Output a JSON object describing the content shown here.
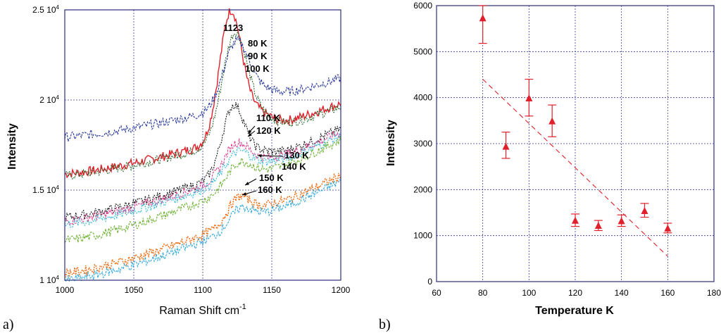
{
  "chart_data": [
    {
      "panel_label": "a)",
      "type": "line",
      "xlabel": "Raman Shift cm",
      "xlabel_sup": "-1",
      "ylabel": "Intensity",
      "xlim": [
        1000,
        1200
      ],
      "ylim": [
        10000,
        25000
      ],
      "x_ticks": [
        "1000",
        "1050",
        "1100",
        "1150",
        "1200"
      ],
      "y_ticks": [
        {
          "value": 10000,
          "base": "1 10",
          "exp": "4"
        },
        {
          "value": 15000,
          "base": "1.5 10",
          "exp": "4"
        },
        {
          "value": 20000,
          "base": "2 10",
          "exp": "4"
        },
        {
          "value": 25000,
          "base": "2.5 10",
          "exp": "4"
        }
      ],
      "peak_label": "1123",
      "series": [
        {
          "name": "80 K",
          "color": "#e0202a",
          "base_start": 15900,
          "base_end": 19800,
          "peak": 6900,
          "center": 1120,
          "width": 8
        },
        {
          "name": "90 K",
          "color": "#2f6a2f",
          "base_start": 15800,
          "base_end": 19600,
          "peak": 5800,
          "center": 1123,
          "width": 9
        },
        {
          "name": "100 K",
          "color": "#2a3a9c",
          "base_start": 17950,
          "base_end": 21200,
          "peak": 3500,
          "center": 1124,
          "width": 9
        },
        {
          "name": "110 K",
          "color": "#111111",
          "base_start": 13500,
          "base_end": 18400,
          "peak": 3600,
          "center": 1122,
          "width": 8
        },
        {
          "name": "120 K",
          "color": "#e04090",
          "base_start": 13300,
          "base_end": 18200,
          "peak": 1700,
          "center": 1124,
          "width": 9
        },
        {
          "name": "130 K",
          "color": "#30b8d8",
          "base_start": 13100,
          "base_end": 18000,
          "peak": 1400,
          "center": 1125,
          "width": 9
        },
        {
          "name": "140 K",
          "color": "#6ab02e",
          "base_start": 12200,
          "base_end": 17800,
          "peak": 1300,
          "center": 1126,
          "width": 9
        },
        {
          "name": "150 K",
          "color": "#f26a10",
          "base_start": 10400,
          "base_end": 15800,
          "peak": 1300,
          "center": 1126,
          "width": 8
        },
        {
          "name": "160 K",
          "color": "#30a8dc",
          "base_start": 10000,
          "base_end": 15500,
          "peak": 1000,
          "center": 1127,
          "width": 8
        }
      ]
    },
    {
      "panel_label": "b)",
      "type": "scatter",
      "xlabel": "Temperature K",
      "ylabel": "Intensity",
      "xlim": [
        60,
        180
      ],
      "ylim": [
        0,
        6000
      ],
      "x_ticks": [
        "60",
        "80",
        "100",
        "120",
        "140",
        "160",
        "180"
      ],
      "y_ticks": [
        "0",
        "1000",
        "2000",
        "3000",
        "4000",
        "5000",
        "6000"
      ],
      "color": "#e0202a",
      "points": [
        {
          "x": 80,
          "y": 5720,
          "err_low": 5180,
          "err_high": 6000
        },
        {
          "x": 90,
          "y": 2930,
          "err_low": 2680,
          "err_high": 3250
        },
        {
          "x": 100,
          "y": 3980,
          "err_low": 3600,
          "err_high": 4400
        },
        {
          "x": 110,
          "y": 3480,
          "err_low": 3150,
          "err_high": 3840
        },
        {
          "x": 120,
          "y": 1320,
          "err_low": 1200,
          "err_high": 1470
        },
        {
          "x": 130,
          "y": 1210,
          "err_low": 1110,
          "err_high": 1330
        },
        {
          "x": 140,
          "y": 1310,
          "err_low": 1200,
          "err_high": 1450
        },
        {
          "x": 150,
          "y": 1530,
          "err_low": 1400,
          "err_high": 1700
        },
        {
          "x": 160,
          "y": 1150,
          "err_low": 1060,
          "err_high": 1270
        }
      ],
      "trend_line": {
        "x": [
          80,
          160
        ],
        "y": [
          4400,
          550
        ]
      }
    }
  ]
}
